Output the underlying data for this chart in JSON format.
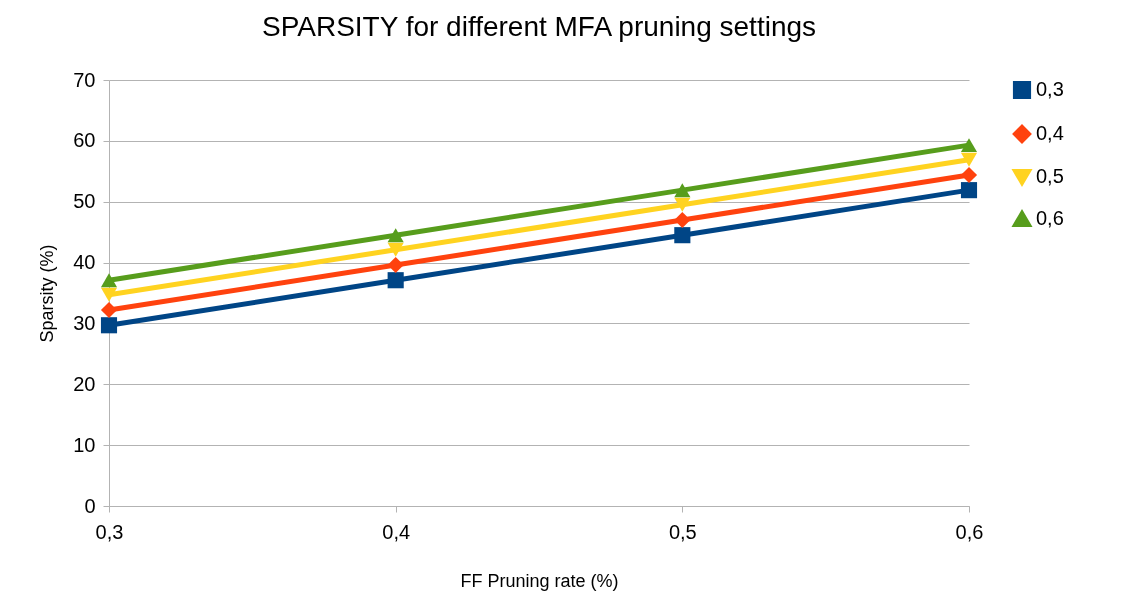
{
  "chart_data": {
    "type": "line",
    "title": "SPARSITY for different MFA pruning settings",
    "xlabel": "FF Pruning rate (%)",
    "ylabel": "Sparsity (%)",
    "categories": [
      "0,3",
      "0,4",
      "0,5",
      "0,6"
    ],
    "series": [
      {
        "name": "0,3",
        "color": "#004586",
        "marker": "square",
        "values": [
          29.7,
          37.1,
          44.5,
          51.9
        ]
      },
      {
        "name": "0,4",
        "color": "#ff420e",
        "marker": "diamond",
        "values": [
          32.2,
          39.6,
          47.0,
          54.4
        ]
      },
      {
        "name": "0,5",
        "color": "#ffd320",
        "marker": "triangle-down",
        "values": [
          34.7,
          42.1,
          49.5,
          56.9
        ]
      },
      {
        "name": "0,6",
        "color": "#579d1c",
        "marker": "triangle",
        "values": [
          37.1,
          44.5,
          51.9,
          59.3
        ]
      }
    ],
    "ylim": [
      0,
      70
    ],
    "yticks": [
      0,
      10,
      20,
      30,
      40,
      50,
      60,
      70
    ],
    "grid": "y",
    "legend": "right",
    "line_style": "solid"
  }
}
